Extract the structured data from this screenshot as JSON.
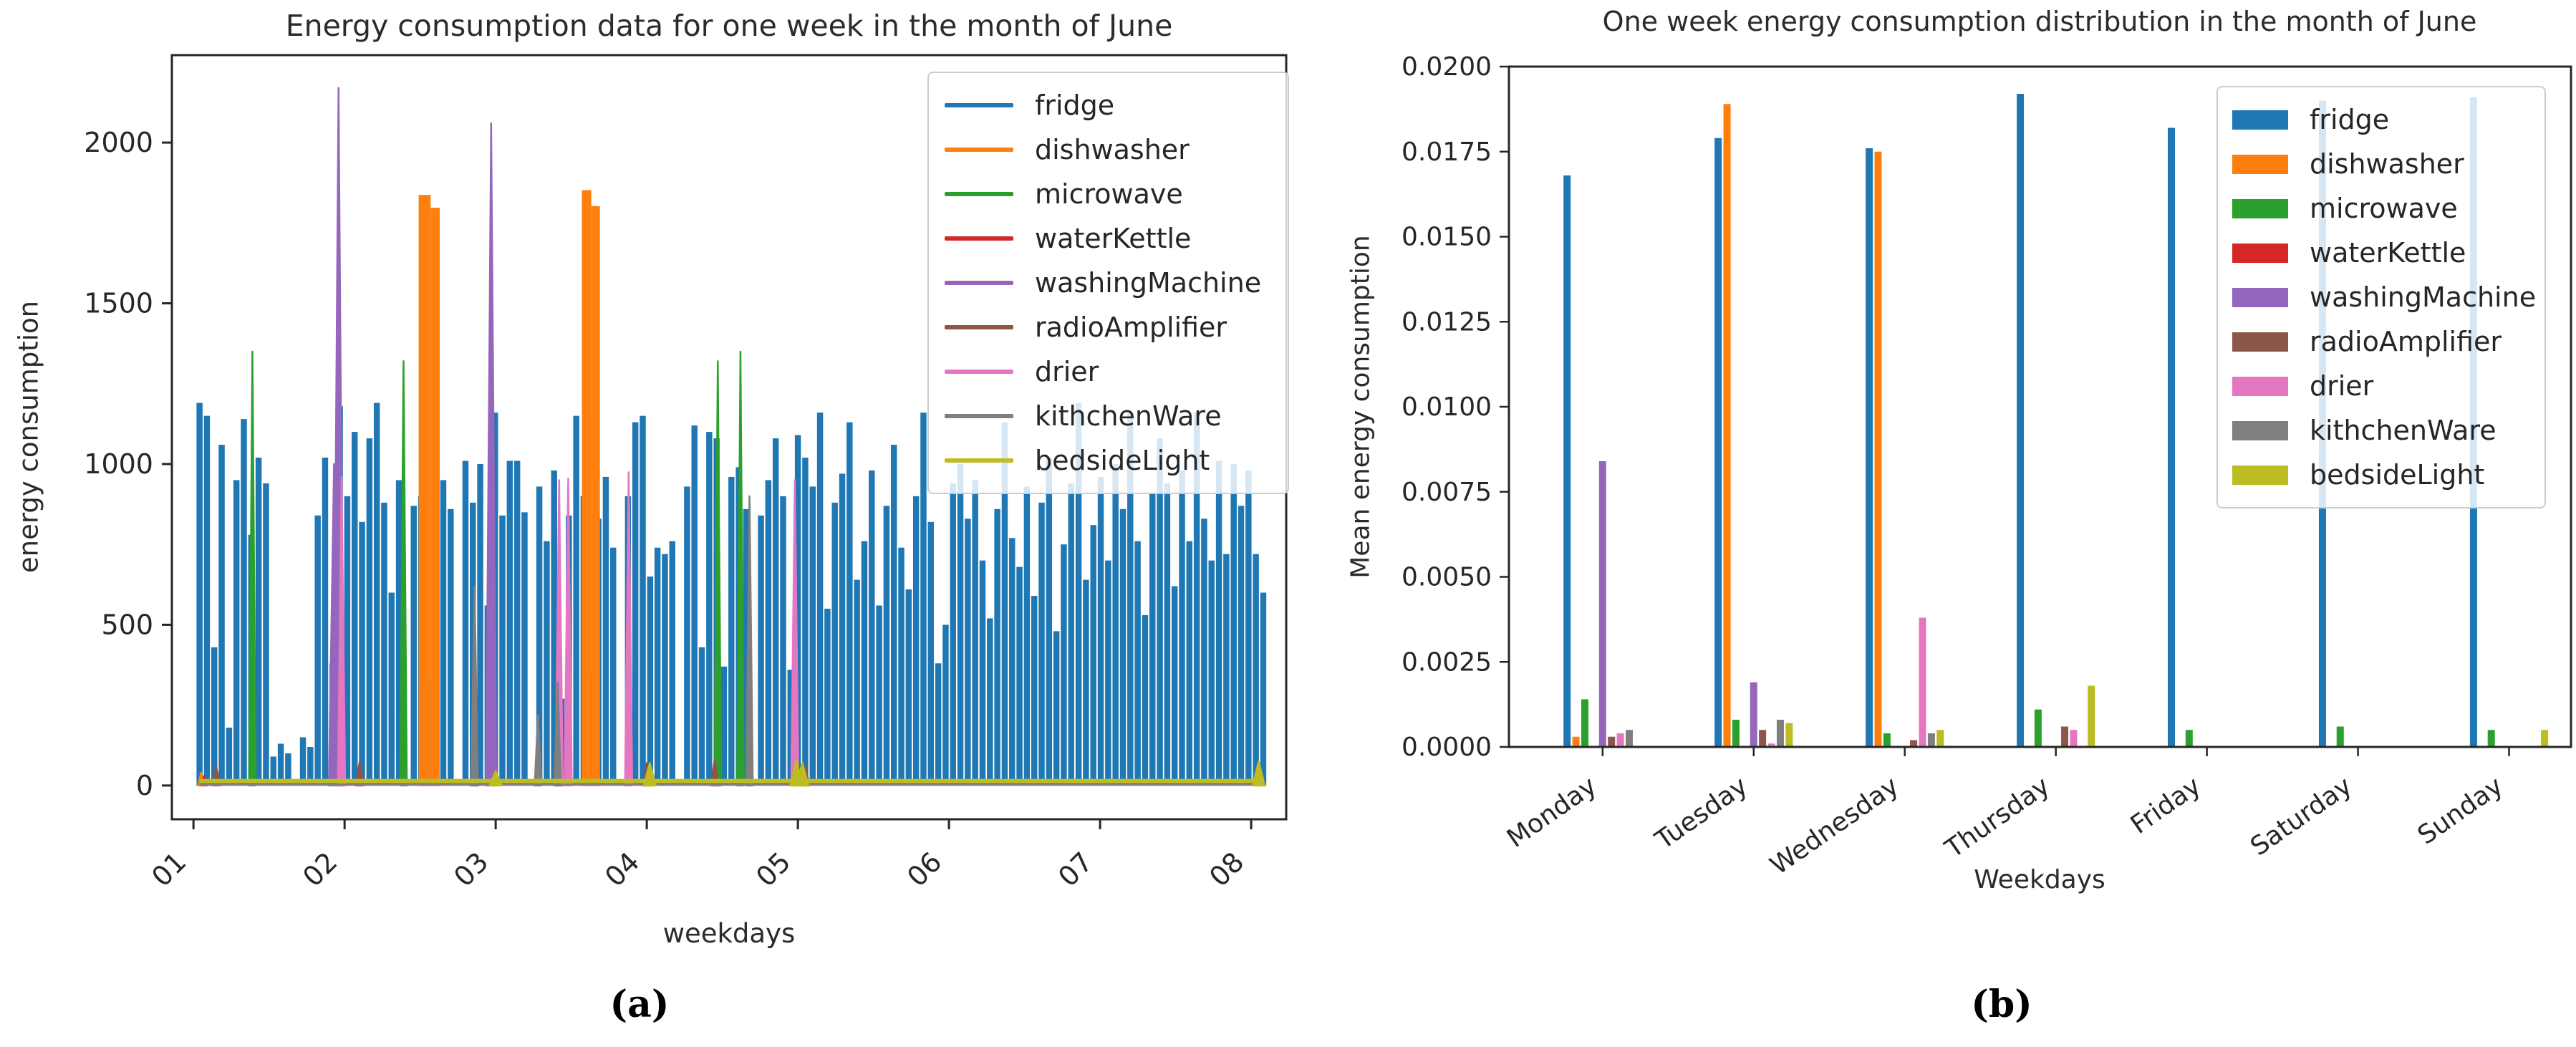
{
  "figure": {
    "background": "#ffffff",
    "panel_a_label": "(a)",
    "panel_b_label": "(b)"
  },
  "colors": {
    "fridge": "#1f77b4",
    "dishwasher": "#ff7f0e",
    "microwave": "#2ca02c",
    "waterKettle": "#d62728",
    "washingMachine": "#9467bd",
    "radioAmplifier": "#8c564b",
    "drier": "#e377c2",
    "kithchenWare": "#7f7f7f",
    "bedsideLight": "#bcbd22"
  },
  "chart_data": [
    {
      "type": "line",
      "title": "Energy consumption data for one week in the month of June",
      "xlabel": "weekdays",
      "ylabel": "energy consumption",
      "xlim": [
        0.857,
        8.232
      ],
      "ylim": [
        -105,
        2272
      ],
      "grid": false,
      "legend_position": "upper right",
      "xticks": {
        "values": [
          1,
          2,
          3,
          4,
          5,
          6,
          7,
          8
        ],
        "labels": [
          "01",
          "02",
          "03",
          "04",
          "05",
          "06",
          "07",
          "08"
        ]
      },
      "yticks": {
        "values": [
          0,
          500,
          1000,
          1500,
          2000
        ],
        "labels": [
          "0",
          "500",
          "1000",
          "1500",
          "2000"
        ]
      },
      "legend": [
        "fridge",
        "dishwasher",
        "microwave",
        "waterKettle",
        "washingMachine",
        "radioAmplifier",
        "drier",
        "kithchenWare",
        "bedsideLight"
      ],
      "series": [
        {
          "name": "fridge",
          "envelope": {
            "start_day": 1.04,
            "step_day": 0.04889,
            "values": [
              1190,
              1150,
              430,
              1060,
              180,
              950,
              1140,
              780,
              1020,
              940,
              90,
              130,
              100,
              0,
              150,
              120,
              840,
              1020,
              380,
              1180,
              900,
              1100,
              820,
              1080,
              1190,
              880,
              600,
              950,
              0,
              870,
              900,
              330,
              980,
              950,
              860,
              0,
              1010,
              880,
              1000,
              560,
              1160,
              840,
              1010,
              1010,
              850,
              0,
              930,
              760,
              980,
              270,
              840,
              1150,
              900,
              350,
              830,
              960,
              740,
              0,
              900,
              1130,
              1150,
              650,
              740,
              720,
              760,
              0,
              930,
              1120,
              430,
              1100,
              1080,
              370,
              960,
              990,
              860,
              0,
              840,
              950,
              1080,
              900,
              360,
              1090,
              1020,
              930,
              1160,
              550,
              880,
              970,
              1130,
              640,
              760,
              980,
              560,
              870,
              1060,
              740,
              610,
              900,
              1160,
              820,
              380,
              500,
              940,
              1000,
              830,
              950,
              700,
              520,
              860,
              1130,
              770,
              680,
              930,
              590,
              880,
              1020,
              480,
              750,
              940,
              1190,
              640,
              810,
              960,
              700,
              1000,
              860,
              1160,
              760,
              530,
              910,
              1080,
              940,
              620,
              980,
              760,
              1160,
              830,
              700,
              1010,
              720,
              1000,
              870,
              980,
              720,
              600
            ]
          }
        },
        {
          "name": "dishwasher",
          "baseline": 8,
          "baseline_width": 3,
          "columns": [
            [
              2.495,
              2.565,
              1835
            ],
            [
              2.575,
              2.625,
              1795
            ],
            [
              3.575,
              3.628,
              1850
            ],
            [
              3.638,
              3.685,
              1800
            ]
          ],
          "spike_width": 0.02,
          "spikes": [
            [
              1.05,
              40
            ]
          ]
        },
        {
          "name": "microwave",
          "baseline": 5,
          "baseline_width": 2.5,
          "spike_width": 0.022,
          "spikes": [
            [
              1.39,
              1350
            ],
            [
              2.39,
              1320
            ],
            [
              4.47,
              1320
            ],
            [
              4.62,
              1350
            ]
          ]
        },
        {
          "name": "waterKettle",
          "baseline": 4,
          "baseline_width": 2.5,
          "spike_width": 0.02,
          "spikes": [
            [
              1.07,
              30
            ],
            [
              2.1,
              25
            ],
            [
              4.0,
              20
            ],
            [
              5.05,
              25
            ]
          ]
        },
        {
          "name": "washingMachine",
          "baseline": 3,
          "baseline_width": 2.5,
          "spike_width": 0.034,
          "spikes": [
            [
              1.93,
              1000
            ],
            [
              1.96,
              2170
            ],
            [
              2.97,
              2060
            ]
          ]
        },
        {
          "name": "radioAmplifier",
          "baseline": 6,
          "baseline_width": 3,
          "spike_width": 0.026,
          "spikes": [
            [
              1.15,
              60
            ],
            [
              2.1,
              75
            ],
            [
              2.86,
              90
            ],
            [
              3.42,
              150
            ],
            [
              4.0,
              70
            ],
            [
              4.45,
              80
            ],
            [
              5.05,
              60
            ]
          ]
        },
        {
          "name": "drier",
          "baseline": 2,
          "baseline_width": 3,
          "spike_width": 0.024,
          "spikes": [
            [
              1.98,
              960
            ],
            [
              3.42,
              950
            ],
            [
              3.48,
              955
            ],
            [
              3.88,
              975
            ],
            [
              4.98,
              950
            ]
          ]
        },
        {
          "name": "kithchenWare",
          "baseline": 3,
          "baseline_width": 2.5,
          "spike_width": 0.022,
          "spikes": [
            [
              2.86,
              620
            ],
            [
              3.28,
              220
            ],
            [
              3.41,
              320
            ],
            [
              4.68,
              900
            ]
          ]
        },
        {
          "name": "bedsideLight",
          "baseline": 14,
          "baseline_width": 6,
          "spike_width": 0.04,
          "spikes": [
            [
              3.0,
              45
            ],
            [
              4.02,
              70
            ],
            [
              4.99,
              80
            ],
            [
              5.03,
              70
            ],
            [
              8.05,
              75
            ]
          ]
        }
      ]
    },
    {
      "type": "bar",
      "title": "One week energy consumption distribution in the month of June",
      "xlabel": "Weekdays",
      "ylabel": "Mean energy consumption",
      "categories": [
        "Monday",
        "Tuesday",
        "Wednesday",
        "Thursday",
        "Friday",
        "Saturday",
        "Sunday"
      ],
      "ylim": [
        0,
        0.02
      ],
      "grid": false,
      "legend_position": "upper right",
      "yticks": {
        "values": [
          0.0,
          0.0025,
          0.005,
          0.0075,
          0.01,
          0.0125,
          0.015,
          0.0175,
          0.02
        ],
        "labels": [
          "0.0000",
          "0.0025",
          "0.0050",
          "0.0075",
          "0.0100",
          "0.0125",
          "0.0150",
          "0.0175",
          "0.0200"
        ]
      },
      "legend": [
        "fridge",
        "dishwasher",
        "microwave",
        "waterKettle",
        "washingMachine",
        "radioAmplifier",
        "drier",
        "kithchenWare",
        "bedsideLight"
      ],
      "series": [
        {
          "name": "fridge",
          "values": [
            0.0168,
            0.0179,
            0.0176,
            0.0192,
            0.0182,
            0.019,
            0.0191
          ]
        },
        {
          "name": "dishwasher",
          "values": [
            0.0003,
            0.0189,
            0.0175,
            0,
            0,
            0,
            0
          ]
        },
        {
          "name": "microwave",
          "values": [
            0.0014,
            0.0008,
            0.0004,
            0.0011,
            0.0005,
            0.0006,
            0.0005
          ]
        },
        {
          "name": "waterKettle",
          "values": [
            0,
            0,
            0,
            0,
            0,
            0,
            0
          ]
        },
        {
          "name": "washingMachine",
          "values": [
            0.0084,
            0.0019,
            0,
            0,
            0,
            0,
            0
          ]
        },
        {
          "name": "radioAmplifier",
          "values": [
            0.0003,
            0.0005,
            0.0002,
            0.0006,
            0,
            0,
            0
          ]
        },
        {
          "name": "drier",
          "values": [
            0.0004,
            0.0001,
            0.0038,
            0.0005,
            0,
            0,
            0
          ]
        },
        {
          "name": "kithchenWare",
          "values": [
            0.0005,
            0.0008,
            0.0004,
            0,
            0,
            0,
            0
          ]
        },
        {
          "name": "bedsideLight",
          "values": [
            0,
            0.0007,
            0.0005,
            0.0018,
            0,
            0,
            0.0005
          ]
        }
      ]
    }
  ]
}
